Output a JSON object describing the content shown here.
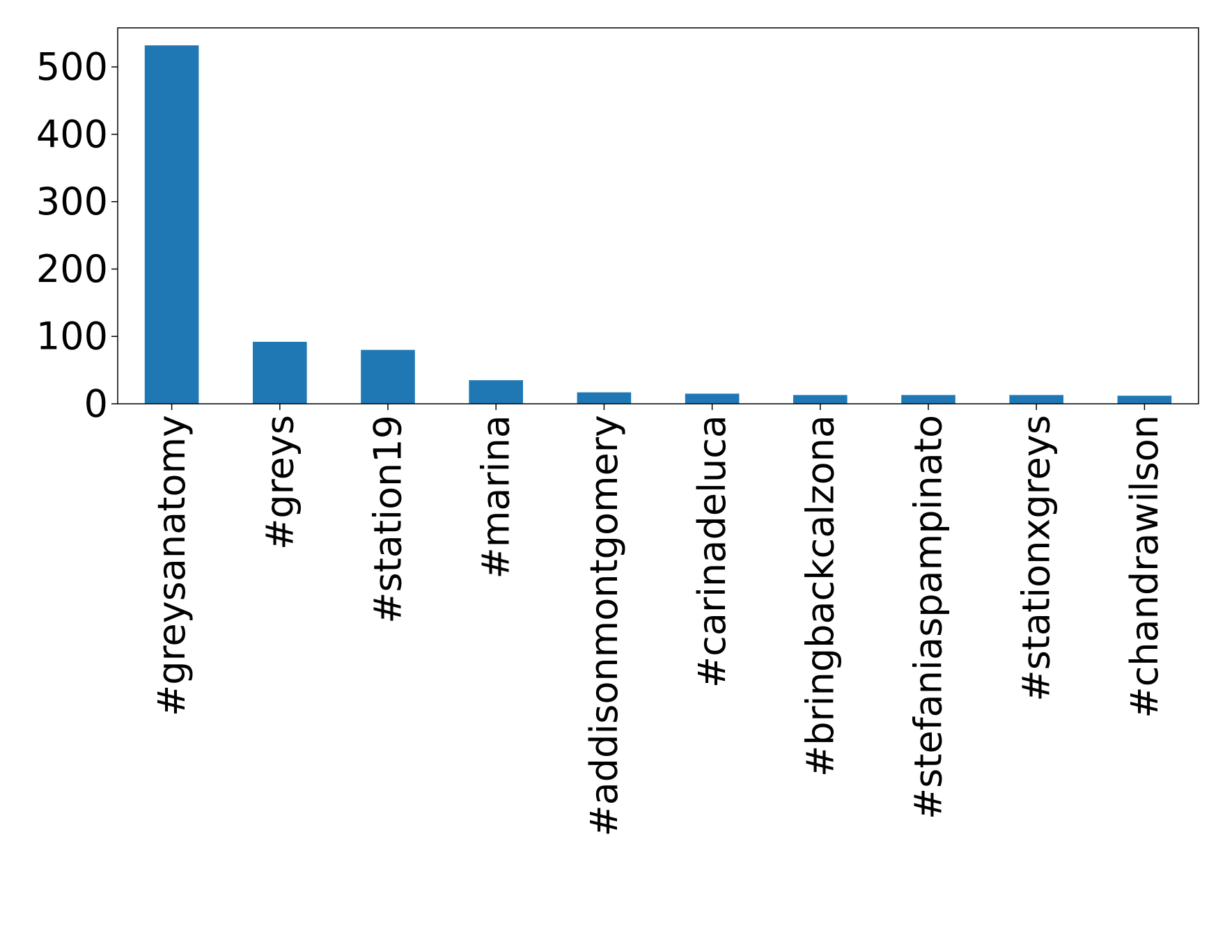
{
  "chart_data": {
    "type": "bar",
    "title": "",
    "xlabel": "",
    "ylabel": "",
    "categories": [
      "#greysanatomy",
      "#greys",
      "#station19",
      "#marina",
      "#addisonmontgomery",
      "#carinadeluca",
      "#bringbackcalzona",
      "#stefaniaspampinato",
      "#stationxgreys",
      "#chandrawilson"
    ],
    "values": [
      532,
      92,
      80,
      35,
      17,
      15,
      13,
      13,
      13,
      12
    ],
    "ylim": [
      0,
      558
    ],
    "yticks": [
      0,
      100,
      200,
      300,
      400,
      500
    ],
    "grid": false,
    "legend": "none",
    "bar_color": "#1f77b4"
  }
}
